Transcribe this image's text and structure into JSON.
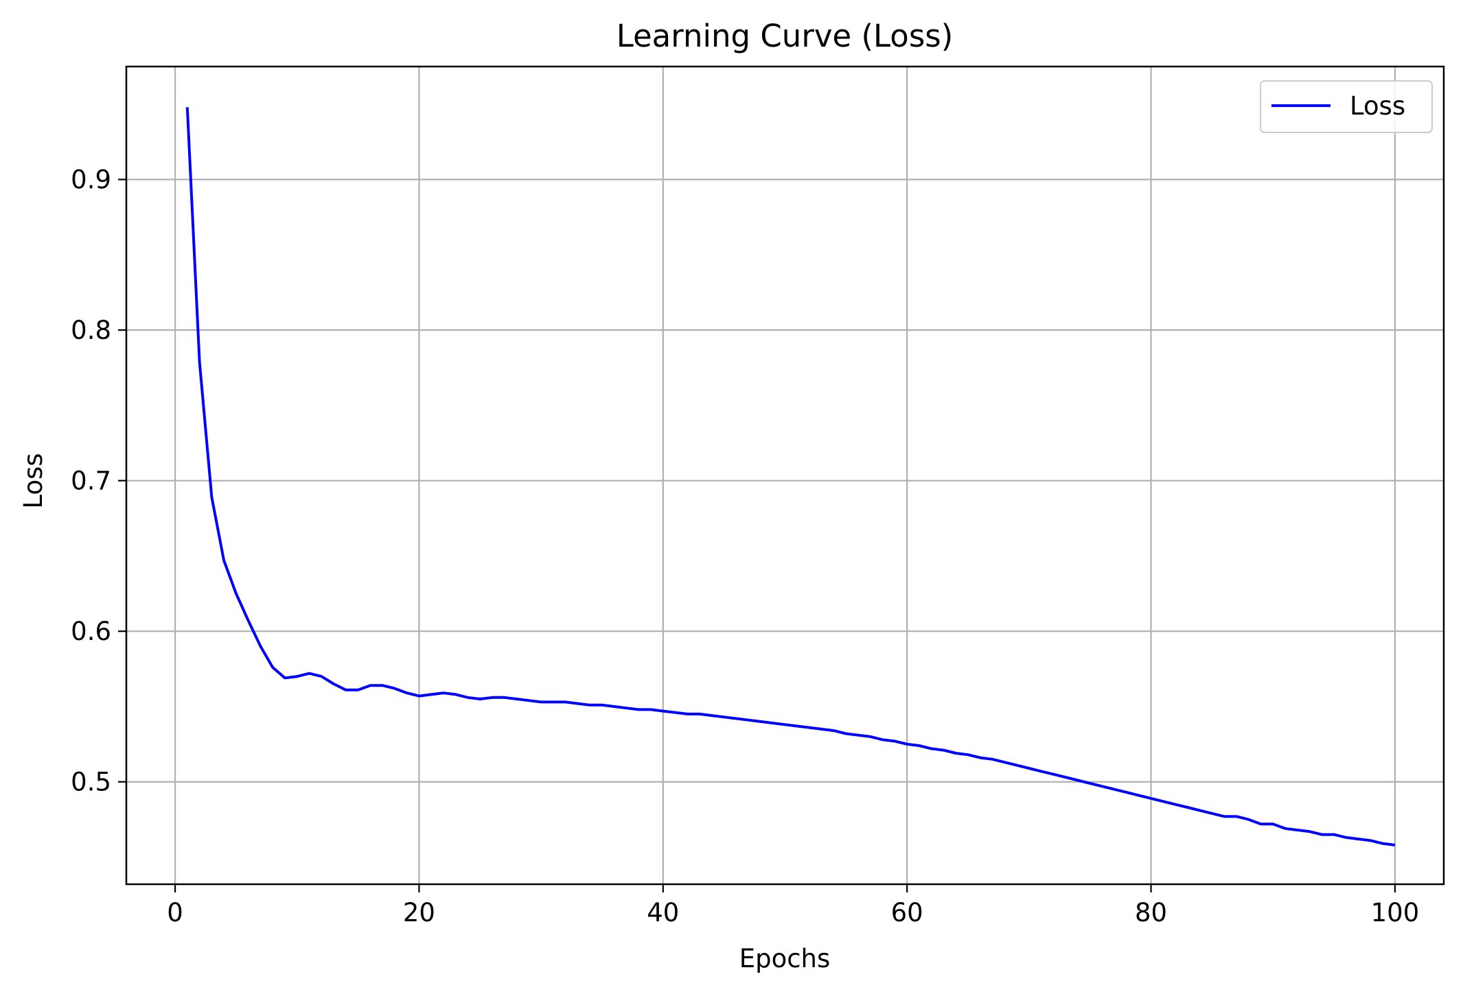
{
  "chart_data": {
    "type": "line",
    "title": "Learning Curve (Loss)",
    "xlabel": "Epochs",
    "ylabel": "Loss",
    "xlim": [
      -4,
      104
    ],
    "ylim": [
      0.432,
      0.975
    ],
    "xticks": [
      0,
      20,
      40,
      60,
      80,
      100
    ],
    "xtick_labels": [
      "0",
      "20",
      "40",
      "60",
      "80",
      "100"
    ],
    "yticks": [
      0.5,
      0.6,
      0.7,
      0.8,
      0.9
    ],
    "ytick_labels": [
      "0.5",
      "0.6",
      "0.7",
      "0.8",
      "0.9"
    ],
    "grid": true,
    "legend_position": "upper right",
    "series": [
      {
        "name": "Loss",
        "color": "#0000ff",
        "x": [
          1,
          2,
          3,
          4,
          5,
          6,
          7,
          8,
          9,
          10,
          11,
          12,
          13,
          14,
          15,
          16,
          17,
          18,
          19,
          20,
          21,
          22,
          23,
          24,
          25,
          26,
          27,
          28,
          29,
          30,
          31,
          32,
          33,
          34,
          35,
          36,
          37,
          38,
          39,
          40,
          41,
          42,
          43,
          44,
          45,
          46,
          47,
          48,
          49,
          50,
          51,
          52,
          53,
          54,
          55,
          56,
          57,
          58,
          59,
          60,
          61,
          62,
          63,
          64,
          65,
          66,
          67,
          68,
          69,
          70,
          71,
          72,
          73,
          74,
          75,
          76,
          77,
          78,
          79,
          80,
          81,
          82,
          83,
          84,
          85,
          86,
          87,
          88,
          89,
          90,
          91,
          92,
          93,
          94,
          95,
          96,
          97,
          98,
          99,
          100
        ],
        "y": [
          0.948,
          0.779,
          0.689,
          0.647,
          0.625,
          0.607,
          0.59,
          0.576,
          0.569,
          0.57,
          0.572,
          0.57,
          0.565,
          0.561,
          0.561,
          0.564,
          0.564,
          0.562,
          0.559,
          0.557,
          0.558,
          0.559,
          0.558,
          0.556,
          0.555,
          0.556,
          0.556,
          0.555,
          0.554,
          0.553,
          0.553,
          0.553,
          0.552,
          0.551,
          0.551,
          0.55,
          0.549,
          0.548,
          0.548,
          0.547,
          0.546,
          0.545,
          0.545,
          0.544,
          0.543,
          0.542,
          0.541,
          0.54,
          0.539,
          0.538,
          0.537,
          0.536,
          0.535,
          0.534,
          0.532,
          0.531,
          0.53,
          0.528,
          0.527,
          0.525,
          0.524,
          0.522,
          0.521,
          0.519,
          0.518,
          0.516,
          0.515,
          0.513,
          0.511,
          0.509,
          0.507,
          0.505,
          0.503,
          0.501,
          0.499,
          0.497,
          0.495,
          0.493,
          0.491,
          0.489,
          0.487,
          0.485,
          0.483,
          0.481,
          0.479,
          0.477,
          0.477,
          0.475,
          0.472,
          0.472,
          0.469,
          0.468,
          0.467,
          0.465,
          0.465,
          0.463,
          0.462,
          0.461,
          0.459,
          0.458
        ]
      }
    ]
  }
}
